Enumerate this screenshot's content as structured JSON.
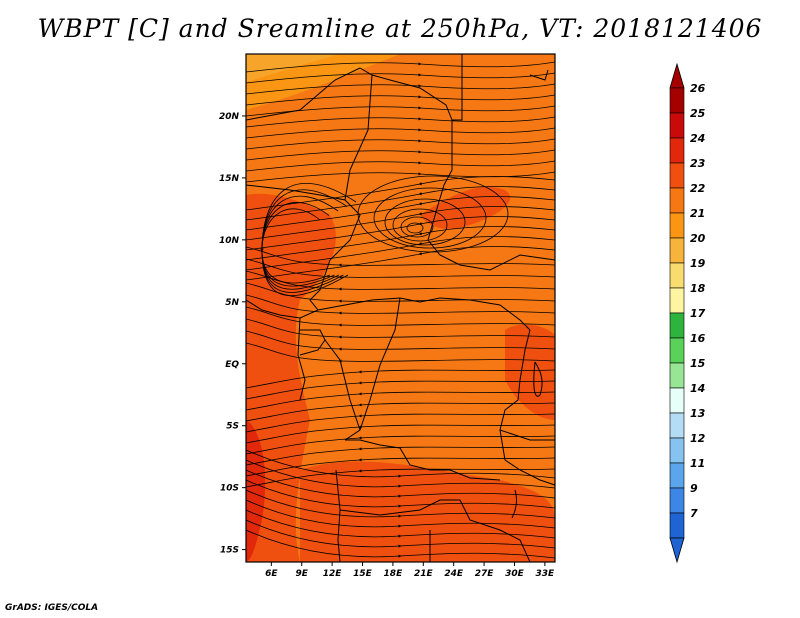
{
  "title": "WBPT [C] and Sreamline at 250hPa, VT: 2018121406",
  "credit": "GrADS: IGES/COLA",
  "map": {
    "lat_range": [
      -16,
      25
    ],
    "lon_range": [
      3.5,
      34
    ],
    "lat_ticks": [
      {
        "value": 20,
        "label": "20N"
      },
      {
        "value": 15,
        "label": "15N"
      },
      {
        "value": 10,
        "label": "10N"
      },
      {
        "value": 5,
        "label": "5N"
      },
      {
        "value": 0,
        "label": "EQ"
      },
      {
        "value": -5,
        "label": "5S"
      },
      {
        "value": -10,
        "label": "10S"
      },
      {
        "value": -15,
        "label": "15S"
      }
    ],
    "lon_ticks": [
      {
        "value": 6,
        "label": "6E"
      },
      {
        "value": 9,
        "label": "9E"
      },
      {
        "value": 12,
        "label": "12E"
      },
      {
        "value": 15,
        "label": "15E"
      },
      {
        "value": 18,
        "label": "18E"
      },
      {
        "value": 21,
        "label": "21E"
      },
      {
        "value": 24,
        "label": "24E"
      },
      {
        "value": 27,
        "label": "27E"
      },
      {
        "value": 30,
        "label": "30E"
      },
      {
        "value": 33,
        "label": "33E"
      }
    ]
  },
  "colorbar": {
    "labels": [
      "26",
      "25",
      "24",
      "23",
      "22",
      "21",
      "20",
      "19",
      "18",
      "17",
      "16",
      "15",
      "14",
      "13",
      "12",
      "11",
      "9",
      "7"
    ],
    "colors": [
      "#a50000",
      "#c80a0a",
      "#e1280a",
      "#f0500f",
      "#f57814",
      "#fa9614",
      "#f7b43c",
      "#f8dc6e",
      "#fff5a0",
      "#2eb43c",
      "#5ad25a",
      "#96e696",
      "#e6fff8",
      "#b4dcf5",
      "#87c3f0",
      "#5aa5eb",
      "#3c87e6",
      "#1e64d2"
    ]
  }
}
